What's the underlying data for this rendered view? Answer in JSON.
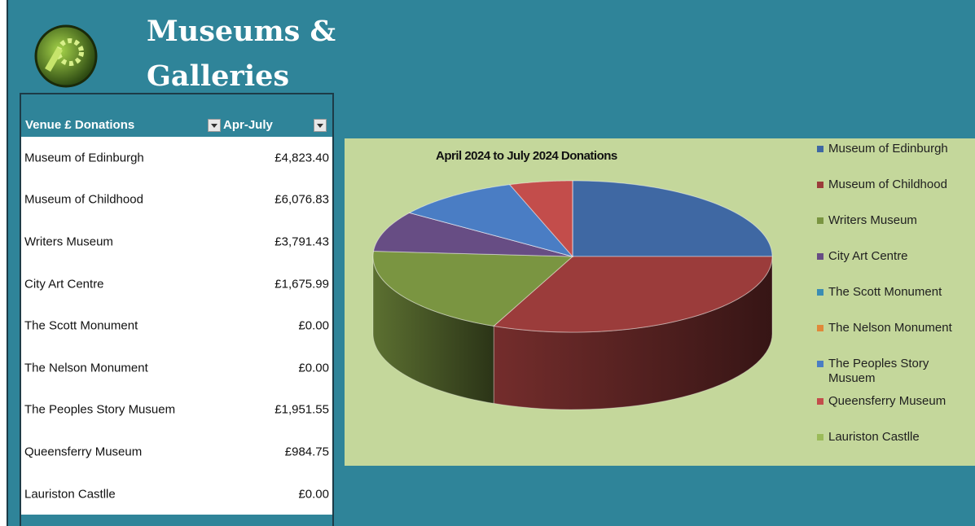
{
  "header": {
    "title_lines": [
      "Museums &",
      "Galleries"
    ]
  },
  "table": {
    "columns": [
      "Venue £ Donations",
      "Apr-July"
    ],
    "rows": [
      [
        "Museum of Edinburgh",
        "£4,823.40"
      ],
      [
        "Museum of Childhood",
        "£6,076.83"
      ],
      [
        "Writers Museum",
        "£3,791.43"
      ],
      [
        "City Art Centre",
        "£1,675.99"
      ],
      [
        "The Scott Monument",
        "£0.00"
      ],
      [
        "The Nelson Monument",
        "£0.00"
      ],
      [
        "The Peoples Story Musuem",
        "£1,951.55"
      ],
      [
        "Queensferry Museum",
        "£984.75"
      ],
      [
        "Lauriston Castlle",
        "£0.00"
      ]
    ]
  },
  "chart_data": {
    "type": "pie",
    "title": "April 2024 to July 2024 Donations",
    "categories": [
      "Museum of Edinburgh",
      "Museum of Childhood",
      "Writers Museum",
      "City Art Centre",
      "The Scott Monument",
      "The Nelson Monument",
      "The Peoples Story Musuem",
      "Queensferry Museum",
      "Lauriston Castlle"
    ],
    "values": [
      4823.4,
      6076.83,
      3791.43,
      1675.99,
      0,
      0,
      1951.55,
      984.75,
      0
    ],
    "colors": [
      "#3f68a3",
      "#9b3c3b",
      "#7a9541",
      "#674d84",
      "#3b8db3",
      "#e0893a",
      "#4a7dc4",
      "#c34d4b",
      "#9bbb59"
    ],
    "legend": "right"
  }
}
